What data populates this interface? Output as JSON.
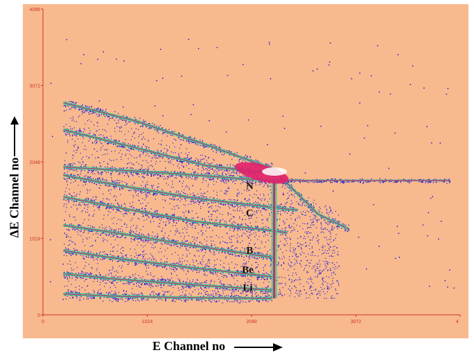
{
  "chart_data": {
    "type": "scatter",
    "title": "",
    "xlabel": "E Channel no",
    "ylabel": "ΔE Channel no",
    "xlim": [
      0,
      4096
    ],
    "ylim": [
      0,
      4096
    ],
    "x_ticks": [
      "0",
      "1024",
      "2048",
      "3072",
      "4"
    ],
    "y_ticks": [
      "0",
      "1024",
      "2048",
      "3072",
      "4096"
    ],
    "background_color": "#f9b98e",
    "density_colors": [
      "#1a1ad9",
      "#22dd99",
      "#e0206a",
      "#ffffff"
    ],
    "element_labels": [
      {
        "text": "N",
        "x": 2030,
        "y": 1680
      },
      {
        "text": "C",
        "x": 2030,
        "y": 1320
      },
      {
        "text": "B",
        "x": 2030,
        "y": 820
      },
      {
        "text": "Be",
        "x": 2010,
        "y": 560
      },
      {
        "text": "Li",
        "x": 2010,
        "y": 320
      }
    ],
    "bands": [
      {
        "name": "Li",
        "points": [
          [
            200,
            280
          ],
          [
            700,
            250
          ],
          [
            1400,
            230
          ],
          [
            2250,
            220
          ]
        ]
      },
      {
        "name": "Be",
        "points": [
          [
            200,
            550
          ],
          [
            700,
            480
          ],
          [
            1400,
            410
          ],
          [
            2250,
            330
          ]
        ]
      },
      {
        "name": "B",
        "points": [
          [
            200,
            860
          ],
          [
            700,
            760
          ],
          [
            1400,
            640
          ],
          [
            2250,
            510
          ]
        ]
      },
      {
        "name": "C-low",
        "points": [
          [
            200,
            1200
          ],
          [
            800,
            1080
          ],
          [
            1500,
            920
          ],
          [
            2250,
            770
          ]
        ]
      },
      {
        "name": "C",
        "points": [
          [
            200,
            1580
          ],
          [
            800,
            1420
          ],
          [
            1500,
            1250
          ],
          [
            2400,
            1100
          ]
        ]
      },
      {
        "name": "N",
        "points": [
          [
            200,
            1870
          ],
          [
            800,
            1720
          ],
          [
            1500,
            1560
          ],
          [
            2500,
            1400
          ]
        ]
      },
      {
        "name": "O",
        "points": [
          [
            200,
            2480
          ],
          [
            900,
            2240
          ],
          [
            1600,
            2000
          ],
          [
            2300,
            1880
          ]
        ]
      },
      {
        "name": "F",
        "points": [
          [
            200,
            2840
          ],
          [
            900,
            2600
          ],
          [
            1600,
            2280
          ],
          [
            2250,
            1960
          ],
          [
            2700,
            1350
          ],
          [
            3000,
            1150
          ]
        ]
      },
      {
        "name": "beam",
        "points": [
          [
            200,
            1980
          ],
          [
            1200,
            1900
          ],
          [
            2000,
            1820
          ],
          [
            2400,
            1780
          ]
        ]
      },
      {
        "name": "horizontal-tail",
        "points": [
          [
            2400,
            1800
          ],
          [
            3200,
            1800
          ],
          [
            4000,
            1800
          ]
        ]
      }
    ],
    "vertical_line": {
      "x": 2270,
      "y_range": [
        220,
        1800
      ]
    },
    "hot_spot": {
      "x": 2150,
      "y": 1900
    }
  }
}
